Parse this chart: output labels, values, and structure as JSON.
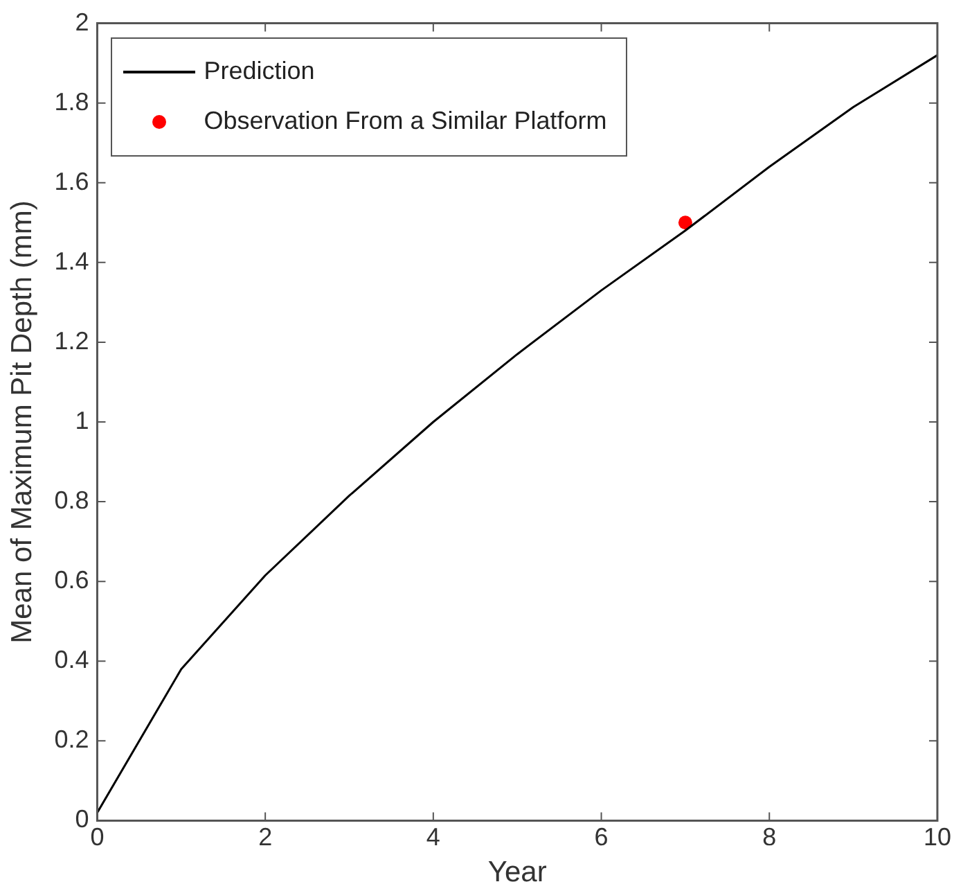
{
  "chart_data": {
    "type": "line",
    "xlabel": "Year",
    "ylabel": "Mean of Maximum Pit Depth (mm)",
    "xlim": [
      0,
      10
    ],
    "xticks": [
      0,
      2,
      4,
      6,
      8,
      10
    ],
    "ylim": [
      0,
      2
    ],
    "yticks": [
      0,
      0.2,
      0.4,
      0.6,
      0.8,
      1,
      1.2,
      1.4,
      1.6,
      1.8,
      2
    ],
    "grid": false,
    "legend": "top left",
    "series": [
      {
        "name": "Prediction",
        "color": "#000000",
        "marker": "none",
        "x": [
          0,
          1,
          2,
          3,
          4,
          5,
          6,
          7,
          8,
          9,
          10
        ],
        "values": [
          0.02,
          0.38,
          0.615,
          0.815,
          1.0,
          1.17,
          1.33,
          1.48,
          1.64,
          1.79,
          1.92
        ]
      },
      {
        "name": "Observation From a Similar Platform",
        "type": "scatter",
        "color": "#ff0000",
        "marker": "circle",
        "x": [
          7
        ],
        "values": [
          1.5
        ]
      }
    ]
  }
}
